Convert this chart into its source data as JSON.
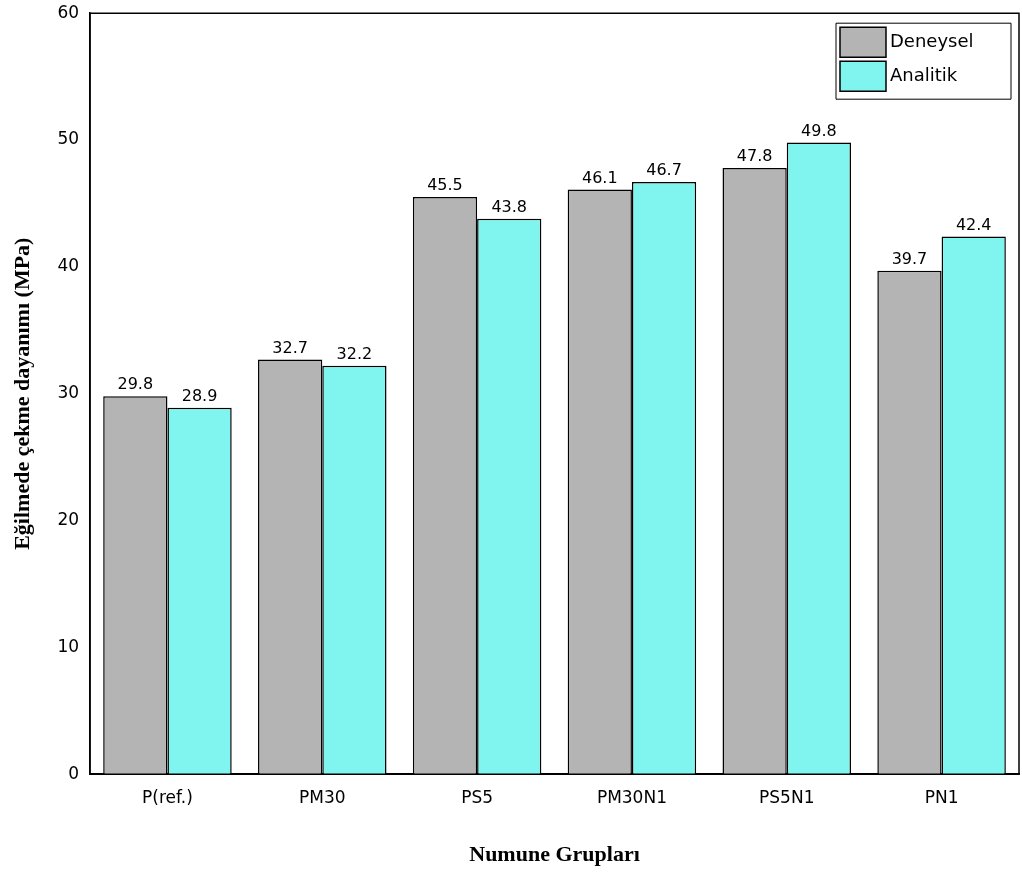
{
  "chart_data": {
    "type": "bar",
    "xlabel": "Numune Grupları",
    "ylabel": "Eğilmede çekme dayanımı (MPa)",
    "categories": [
      "P(ref.)",
      "PM30",
      "PS5",
      "PM30N1",
      "PS5N1",
      "PN1"
    ],
    "series": [
      {
        "name": "Deneysel",
        "color": "#b4b4b4",
        "values": [
          29.8,
          32.7,
          45.5,
          46.1,
          47.8,
          39.7
        ]
      },
      {
        "name": "Analitik",
        "color": "#80f4ee",
        "values": [
          28.9,
          32.2,
          43.8,
          46.7,
          49.8,
          42.4
        ]
      }
    ],
    "ylim": [
      0,
      60
    ],
    "yticks": [
      0,
      10,
      20,
      30,
      40,
      50,
      60
    ],
    "grid": false,
    "legend": "top right",
    "data_labels": true
  }
}
